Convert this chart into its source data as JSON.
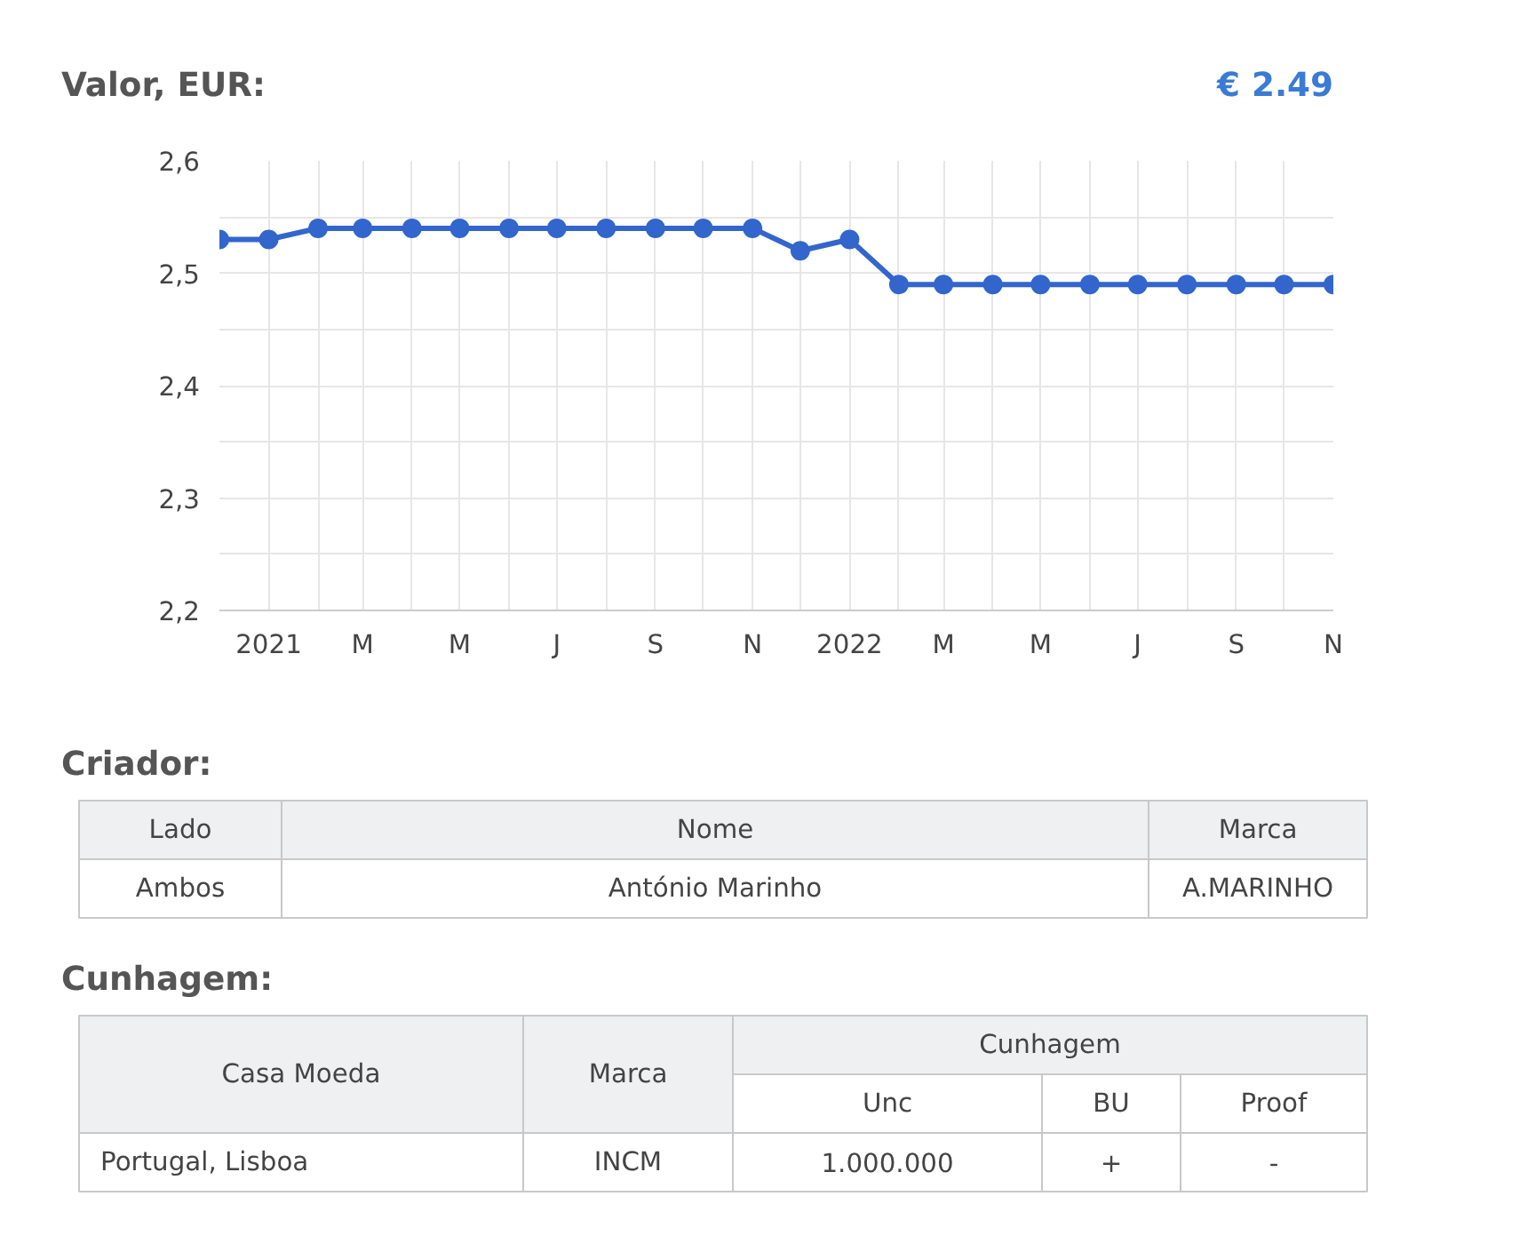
{
  "chart_data": [
    {
      "type": "line",
      "title": "Valor, EUR:",
      "annotations": [
        "€ 2.49"
      ],
      "x": [
        "2020-12",
        "2021-01",
        "2021-02",
        "2021-03",
        "2021-04",
        "2021-05",
        "2021-06",
        "2021-07",
        "2021-08",
        "2021-09",
        "2021-10",
        "2021-11",
        "2021-12",
        "2022-01",
        "2022-02",
        "2022-03",
        "2022-04",
        "2022-05",
        "2022-06",
        "2022-07",
        "2022-08",
        "2022-09",
        "2022-10",
        "2022-11"
      ],
      "series": [
        {
          "color": "#3366cc",
          "values": [
            2.53,
            2.53,
            2.54,
            2.54,
            2.54,
            2.54,
            2.54,
            2.54,
            2.54,
            2.54,
            2.54,
            2.54,
            2.52,
            2.53,
            2.49,
            2.49,
            2.49,
            2.49,
            2.49,
            2.49,
            2.49,
            2.49,
            2.49,
            2.49
          ]
        }
      ],
      "xlim": [
        "2020-12",
        "2022-11"
      ],
      "xticks": [
        {
          "value": "2021-01",
          "label": "2021"
        },
        {
          "value": "2021-02",
          "label": null
        },
        {
          "value": "2021-03",
          "label": "M"
        },
        {
          "value": "2021-04",
          "label": null
        },
        {
          "value": "2021-05",
          "label": "M"
        },
        {
          "value": "2021-06",
          "label": null
        },
        {
          "value": "2021-07",
          "label": "J"
        },
        {
          "value": "2021-08",
          "label": null
        },
        {
          "value": "2021-09",
          "label": "S"
        },
        {
          "value": "2021-10",
          "label": null
        },
        {
          "value": "2021-11",
          "label": "N"
        },
        {
          "value": "2021-12",
          "label": null
        },
        {
          "value": "2022-01",
          "label": "2022"
        },
        {
          "value": "2022-02",
          "label": null
        },
        {
          "value": "2022-03",
          "label": "M"
        },
        {
          "value": "2022-04",
          "label": null
        },
        {
          "value": "2022-05",
          "label": "M"
        },
        {
          "value": "2022-06",
          "label": null
        },
        {
          "value": "2022-07",
          "label": "J"
        },
        {
          "value": "2022-08",
          "label": null
        },
        {
          "value": "2022-09",
          "label": "S"
        },
        {
          "value": "2022-10",
          "label": null
        },
        {
          "value": "2022-11",
          "label": "N"
        }
      ],
      "ylim": [
        2.2,
        2.6
      ],
      "yticks": [
        {
          "value": 2.2,
          "label": "2,2"
        },
        {
          "value": 2.25,
          "label": null
        },
        {
          "value": 2.3,
          "label": "2,3"
        },
        {
          "value": 2.35,
          "label": null
        },
        {
          "value": 2.4,
          "label": "2,4"
        },
        {
          "value": 2.45,
          "label": null
        },
        {
          "value": 2.5,
          "label": "2,5"
        },
        {
          "value": 2.55,
          "label": null
        },
        {
          "value": 2.6,
          "label": "2,6"
        }
      ],
      "grid": true,
      "marker": "circle",
      "line_style": "solid"
    },
    {
      "type": "other",
      "title": "Criador:",
      "annotations": [
        "Lado",
        "Nome",
        "Marca",
        "Ambos",
        "António Marinho",
        "A.MARINHO"
      ]
    },
    {
      "type": "other",
      "title": "Cunhagem:",
      "annotations": [
        "Casa Moeda",
        "Marca",
        "Cunhagem",
        "Unc",
        "BU",
        "Proof",
        "Portugal, Lisboa",
        "INCM",
        "1.000.000",
        "+",
        "-"
      ]
    }
  ]
}
